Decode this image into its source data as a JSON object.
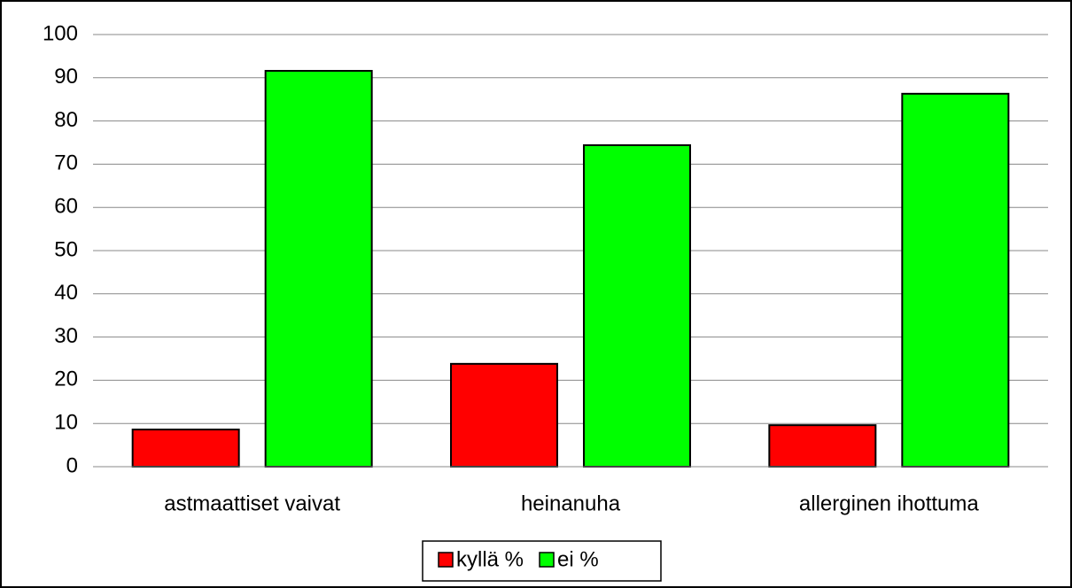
{
  "chart_data": {
    "type": "bar",
    "categories": [
      "astmaattiset vaivat",
      "heinanuha",
      "allerginen ihottuma"
    ],
    "series": [
      {
        "name": "kyllä %",
        "color": "#ff0000",
        "values": [
          8.6,
          23.8,
          9.6
        ]
      },
      {
        "name": "ei %",
        "color": "#00ff00",
        "values": [
          91.6,
          74.4,
          86.3
        ]
      }
    ],
    "ylim": [
      0,
      100
    ],
    "yticks": [
      0,
      10,
      20,
      30,
      40,
      50,
      60,
      70,
      80,
      90,
      100
    ],
    "grid": true,
    "legend": "bottom"
  }
}
